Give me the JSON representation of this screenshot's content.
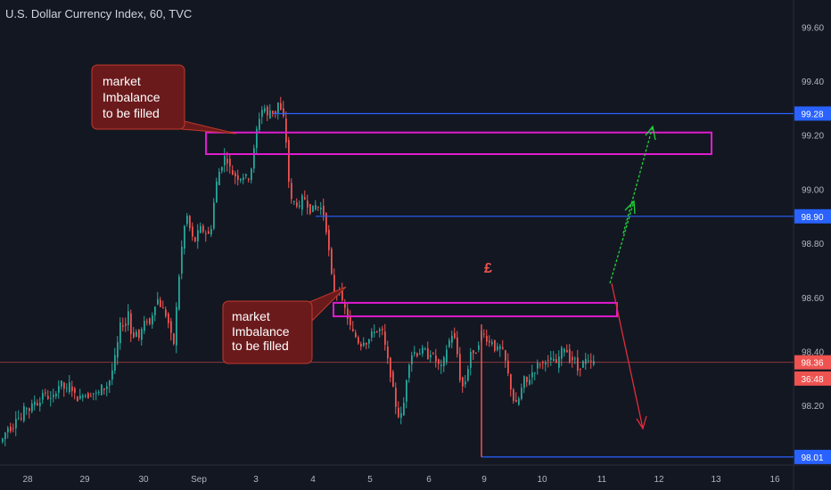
{
  "chart_data": {
    "type": "candlestick",
    "title": "U.S. Dollar Currency Index, 60, TVC",
    "y_ticks": [
      98.2,
      98.4,
      98.6,
      98.8,
      99.0,
      99.2,
      99.4,
      99.6
    ],
    "ylim": [
      97.98,
      99.7
    ],
    "x_ticks": [
      "28",
      "29",
      "30",
      "Sep",
      "3",
      "4",
      "5",
      "6",
      "9",
      "10",
      "11",
      "12",
      "13",
      "16"
    ],
    "price_labels": [
      {
        "text": "99.28",
        "value": 99.28,
        "color": "#2962ff"
      },
      {
        "text": "98.90",
        "value": 98.9,
        "color": "#2962ff"
      },
      {
        "text": "98.36",
        "value": 98.36,
        "color": "#ef5350"
      },
      {
        "text": "36:48",
        "value": 98.3,
        "color": "#ef5350"
      },
      {
        "text": "98.01",
        "value": 98.01,
        "color": "#2962ff"
      }
    ],
    "current_price": 98.36,
    "series_path": [
      [
        0,
        98.06
      ],
      [
        6,
        98.08
      ],
      [
        10,
        98.12
      ],
      [
        16,
        98.11
      ],
      [
        20,
        98.16
      ],
      [
        26,
        98.15
      ],
      [
        30,
        98.2
      ],
      [
        36,
        98.18
      ],
      [
        40,
        98.22
      ],
      [
        46,
        98.2
      ],
      [
        50,
        98.25
      ],
      [
        56,
        98.23
      ],
      [
        60,
        98.22
      ],
      [
        66,
        98.26
      ],
      [
        70,
        98.29
      ],
      [
        76,
        98.25
      ],
      [
        80,
        98.28
      ],
      [
        86,
        98.24
      ],
      [
        90,
        98.22
      ],
      [
        96,
        98.25
      ],
      [
        100,
        98.23
      ],
      [
        106,
        98.25
      ],
      [
        112,
        98.24
      ],
      [
        116,
        98.27
      ],
      [
        120,
        98.26
      ],
      [
        126,
        98.3
      ],
      [
        130,
        98.36
      ],
      [
        134,
        98.43
      ],
      [
        138,
        98.52
      ],
      [
        142,
        98.48
      ],
      [
        146,
        98.55
      ],
      [
        150,
        98.44
      ],
      [
        154,
        98.48
      ],
      [
        158,
        98.45
      ],
      [
        162,
        98.49
      ],
      [
        166,
        98.52
      ],
      [
        170,
        98.5
      ],
      [
        174,
        98.55
      ],
      [
        178,
        98.6
      ],
      [
        182,
        98.57
      ],
      [
        186,
        98.55
      ],
      [
        190,
        98.52
      ],
      [
        194,
        98.46
      ],
      [
        198,
        98.42
      ],
      [
        200,
        98.56
      ],
      [
        204,
        98.72
      ],
      [
        208,
        98.85
      ],
      [
        212,
        98.9
      ],
      [
        216,
        98.84
      ],
      [
        220,
        98.8
      ],
      [
        226,
        98.86
      ],
      [
        232,
        98.84
      ],
      [
        238,
        98.83
      ],
      [
        242,
        98.95
      ],
      [
        246,
        99.05
      ],
      [
        250,
        99.08
      ],
      [
        254,
        99.12
      ],
      [
        258,
        99.1
      ],
      [
        262,
        99.06
      ],
      [
        266,
        99.05
      ],
      [
        270,
        99.04
      ],
      [
        276,
        99.05
      ],
      [
        282,
        99.04
      ],
      [
        286,
        99.12
      ],
      [
        290,
        99.22
      ],
      [
        294,
        99.28
      ],
      [
        298,
        99.31
      ],
      [
        302,
        99.27
      ],
      [
        306,
        99.3
      ],
      [
        310,
        99.27
      ],
      [
        314,
        99.32
      ],
      [
        318,
        99.28
      ],
      [
        322,
        99.25
      ],
      [
        324,
        99.1
      ],
      [
        328,
        98.96
      ],
      [
        334,
        98.95
      ],
      [
        338,
        98.93
      ],
      [
        342,
        98.98
      ],
      [
        346,
        98.95
      ],
      [
        350,
        98.92
      ],
      [
        356,
        98.94
      ],
      [
        362,
        98.93
      ],
      [
        366,
        98.9
      ],
      [
        370,
        98.8
      ],
      [
        374,
        98.68
      ],
      [
        378,
        98.6
      ],
      [
        382,
        98.64
      ],
      [
        386,
        98.58
      ],
      [
        390,
        98.55
      ],
      [
        394,
        98.5
      ],
      [
        398,
        98.47
      ],
      [
        402,
        98.45
      ],
      [
        406,
        98.42
      ],
      [
        410,
        98.44
      ],
      [
        414,
        98.43
      ],
      [
        418,
        98.46
      ],
      [
        422,
        98.48
      ],
      [
        426,
        98.47
      ],
      [
        430,
        98.49
      ],
      [
        434,
        98.42
      ],
      [
        438,
        98.35
      ],
      [
        442,
        98.28
      ],
      [
        446,
        98.2
      ],
      [
        450,
        98.15
      ],
      [
        454,
        98.18
      ],
      [
        458,
        98.3
      ],
      [
        462,
        98.38
      ],
      [
        466,
        98.4
      ],
      [
        470,
        98.39
      ],
      [
        474,
        98.4
      ],
      [
        478,
        98.41
      ],
      [
        482,
        98.38
      ],
      [
        486,
        98.4
      ],
      [
        490,
        98.37
      ],
      [
        494,
        98.35
      ],
      [
        498,
        98.34
      ],
      [
        502,
        98.4
      ],
      [
        506,
        98.44
      ],
      [
        510,
        98.47
      ],
      [
        514,
        98.42
      ],
      [
        518,
        98.3
      ],
      [
        522,
        98.26
      ],
      [
        526,
        98.32
      ],
      [
        530,
        98.4
      ],
      [
        534,
        98.38
      ],
      [
        538,
        98.42
      ],
      [
        542,
        98.47
      ],
      [
        546,
        98.46
      ],
      [
        550,
        98.43
      ],
      [
        554,
        98.44
      ],
      [
        558,
        98.4
      ],
      [
        562,
        98.42
      ],
      [
        566,
        98.4
      ],
      [
        570,
        98.35
      ],
      [
        574,
        98.28
      ],
      [
        578,
        98.22
      ],
      [
        582,
        98.2
      ],
      [
        586,
        98.25
      ],
      [
        590,
        98.3
      ],
      [
        594,
        98.28
      ],
      [
        598,
        98.32
      ],
      [
        602,
        98.33
      ],
      [
        606,
        98.36
      ],
      [
        610,
        98.35
      ],
      [
        614,
        98.37
      ],
      [
        618,
        98.36
      ],
      [
        622,
        98.38
      ],
      [
        626,
        98.35
      ],
      [
        630,
        98.39
      ],
      [
        634,
        98.42
      ],
      [
        638,
        98.4
      ],
      [
        642,
        98.36
      ],
      [
        646,
        98.38
      ],
      [
        650,
        98.33
      ],
      [
        654,
        98.35
      ],
      [
        658,
        98.37
      ],
      [
        662,
        98.36
      ],
      [
        666,
        98.36
      ]
    ],
    "annotations": {
      "top_label": [
        "market",
        "Imbalance",
        "to be filled"
      ],
      "bottom_label": [
        "market",
        "Imbalance",
        "to be filled"
      ],
      "symbol": "£"
    },
    "zones": [
      {
        "value_top": 99.21,
        "value_bottom": 99.13,
        "color": "#e01bd0"
      },
      {
        "value_top": 98.58,
        "value_bottom": 98.53,
        "color": "#e01bd0"
      }
    ],
    "levels": [
      {
        "value": 99.28,
        "color": "#2962ff"
      },
      {
        "value": 98.9,
        "color": "#2962ff"
      },
      {
        "value": 98.01,
        "color": "#2962ff"
      }
    ],
    "colors": {
      "background": "#131722",
      "up": "#26a69a",
      "down": "#ef5350",
      "axis_text": "#b2b5be",
      "label_box": "#6b1a1c"
    }
  }
}
